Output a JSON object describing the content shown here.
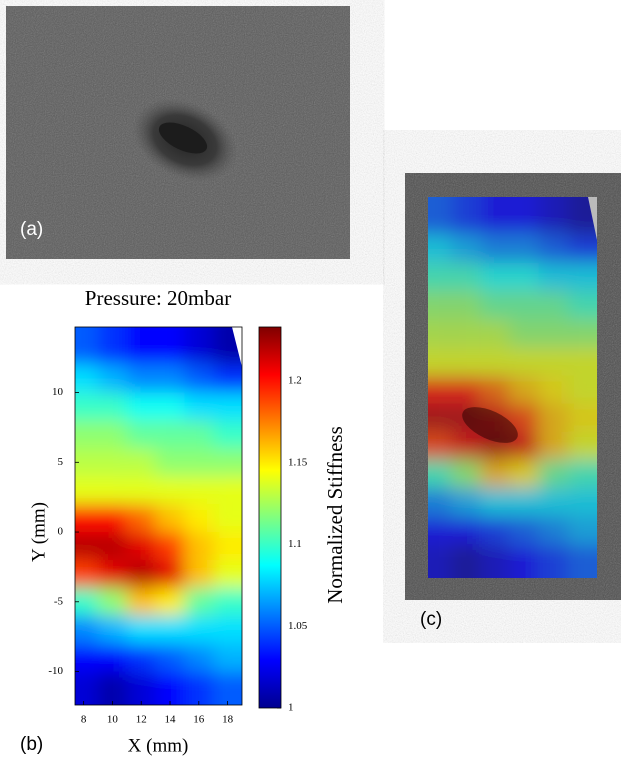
{
  "panels": {
    "a": "(a)",
    "b": "(b)",
    "c": "(c)"
  },
  "chart_data": {
    "type": "heatmap",
    "title": "Pressure: 20mbar",
    "x_label": "X (mm)",
    "y_label": "Y (mm)",
    "colorbar_label": "Normalized Stiffness",
    "colormap": "jet",
    "x": [
      8,
      10,
      12,
      14,
      16,
      18
    ],
    "y": [
      13,
      11,
      9,
      7,
      5,
      3,
      1,
      -1,
      -3,
      -5,
      -7,
      -9,
      -11
    ],
    "values": [
      [
        1.05,
        1.04,
        1.03,
        1.03,
        1.02,
        1.01
      ],
      [
        1.08,
        1.07,
        1.06,
        1.06,
        1.05,
        1.04
      ],
      [
        1.1,
        1.1,
        1.09,
        1.09,
        1.08,
        1.08
      ],
      [
        1.12,
        1.12,
        1.11,
        1.11,
        1.11,
        1.1
      ],
      [
        1.13,
        1.13,
        1.13,
        1.12,
        1.12,
        1.12
      ],
      [
        1.14,
        1.14,
        1.14,
        1.14,
        1.14,
        1.14
      ],
      [
        1.2,
        1.2,
        1.18,
        1.16,
        1.15,
        1.14
      ],
      [
        1.22,
        1.22,
        1.21,
        1.19,
        1.16,
        1.15
      ],
      [
        1.19,
        1.21,
        1.22,
        1.21,
        1.16,
        1.14
      ],
      [
        1.1,
        1.12,
        1.16,
        1.15,
        1.11,
        1.1
      ],
      [
        1.06,
        1.07,
        1.08,
        1.08,
        1.08,
        1.08
      ],
      [
        1.03,
        1.03,
        1.04,
        1.05,
        1.06,
        1.07
      ],
      [
        1.02,
        1.01,
        1.02,
        1.03,
        1.04,
        1.05
      ]
    ],
    "xlim": [
      7.4,
      19
    ],
    "ylim": [
      -12.4,
      14.7
    ],
    "xticks": [
      8,
      10,
      12,
      14,
      16,
      18
    ],
    "yticks": [
      -10,
      -5,
      0,
      5,
      10
    ],
    "clim": [
      1,
      1.233
    ],
    "cticks": [
      1,
      1.05,
      1.1,
      1.15,
      1.2
    ]
  }
}
